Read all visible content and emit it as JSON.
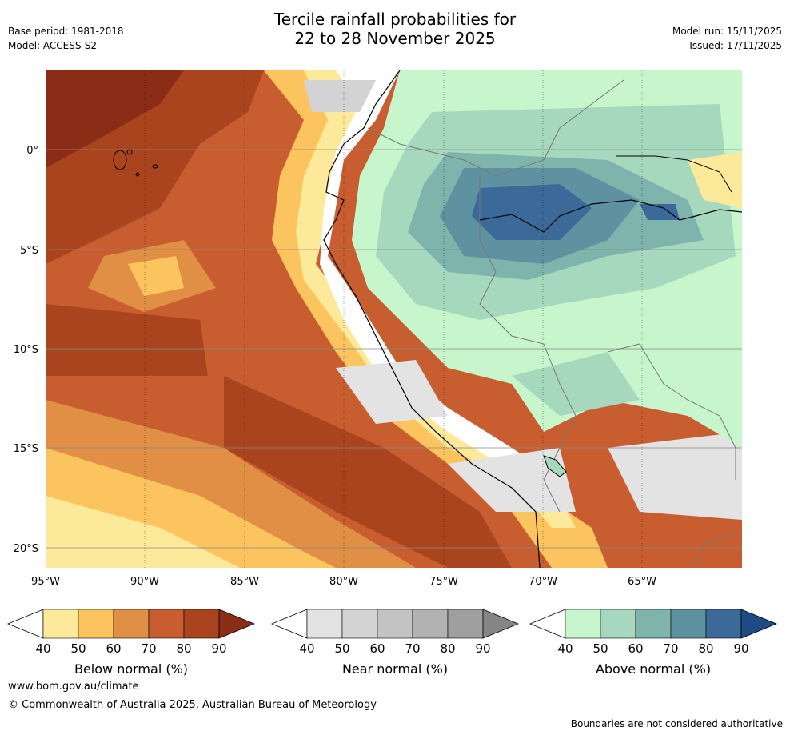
{
  "title": {
    "line1": "Tercile rainfall probabilities for",
    "line2": "22 to 28 November 2025"
  },
  "meta_left": {
    "base_period": "Base period: 1981-2018",
    "model": "Model: ACCESS-S2"
  },
  "meta_right": {
    "model_run": "Model run: 15/11/2025",
    "issued": "Issued: 17/11/2025"
  },
  "map": {
    "x_ticks": [
      "95°W",
      "90°W",
      "85°W",
      "80°W",
      "75°W",
      "70°W",
      "65°W"
    ],
    "y_ticks": [
      "0°",
      "5°S",
      "10°S",
      "15°S",
      "20°S"
    ]
  },
  "colorbars": [
    {
      "label": "Below normal (%)",
      "ticks": [
        "40",
        "50",
        "60",
        "70",
        "80",
        "90"
      ],
      "colors": [
        "#fde99a",
        "#fbc45e",
        "#e08f45",
        "#c85e30",
        "#a9441f",
        "#8b2c16"
      ]
    },
    {
      "label": "Near normal (%)",
      "ticks": [
        "40",
        "50",
        "60",
        "70",
        "80",
        "90"
      ],
      "colors": [
        "#e3e3e3",
        "#d3d3d3",
        "#c3c3c3",
        "#b2b2b2",
        "#9f9f9f",
        "#858585"
      ]
    },
    {
      "label": "Above normal (%)",
      "ticks": [
        "40",
        "50",
        "60",
        "70",
        "80",
        "90"
      ],
      "colors": [
        "#c7f6cc",
        "#a6d8be",
        "#7fb4ad",
        "#5e92a0",
        "#3b6a99",
        "#1e4a85"
      ]
    }
  ],
  "footer": {
    "url": "www.bom.gov.au/climate",
    "copyright": "© Commonwealth of Australia 2025, Australian Bureau of Meteorology",
    "note": "Boundaries are not considered authoritative"
  }
}
